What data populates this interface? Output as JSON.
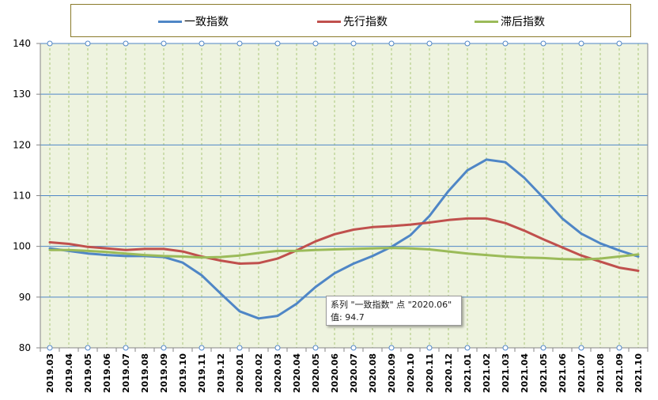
{
  "chart_data": {
    "type": "line",
    "categories": [
      "2019.03",
      "2019.04",
      "2019.05",
      "2019.06",
      "2019.07",
      "2019.08",
      "2019.09",
      "2019.10",
      "2019.11",
      "2019.12",
      "2020.01",
      "2020.02",
      "2020.03",
      "2020.04",
      "2020.05",
      "2020.06",
      "2020.07",
      "2020.08",
      "2020.09",
      "2020.10",
      "2020.11",
      "2020.12",
      "2021.01",
      "2021.02",
      "2021.03",
      "2021.04",
      "2021.05",
      "2021.06",
      "2021.07",
      "2021.08",
      "2021.09",
      "2021.10"
    ],
    "series": [
      {
        "name": "一致指数",
        "color": "#4f86c6",
        "values": [
          99.6,
          99.1,
          98.6,
          98.3,
          98.1,
          98.1,
          97.9,
          96.8,
          94.3,
          90.7,
          87.2,
          85.8,
          86.3,
          88.7,
          92.0,
          94.7,
          96.6,
          98.1,
          99.9,
          102.2,
          106.0,
          110.9,
          115.0,
          117.1,
          116.6,
          113.5,
          109.6,
          105.5,
          102.5,
          100.6,
          99.2,
          98.0
        ]
      },
      {
        "name": "先行指数",
        "color": "#c0504d",
        "values": [
          100.8,
          100.5,
          99.9,
          99.6,
          99.3,
          99.5,
          99.5,
          99.0,
          98.0,
          97.2,
          96.6,
          96.7,
          97.6,
          99.2,
          101.0,
          102.4,
          103.3,
          103.8,
          104.0,
          104.3,
          104.7,
          105.2,
          105.5,
          105.5,
          104.6,
          103.1,
          101.4,
          99.8,
          98.2,
          97.0,
          95.8,
          95.2
        ]
      },
      {
        "name": "滞后指数",
        "color": "#9bbb59",
        "values": [
          99.3,
          99.3,
          99.1,
          98.9,
          98.6,
          98.3,
          98.1,
          98.0,
          97.8,
          97.9,
          98.2,
          98.7,
          99.1,
          99.1,
          99.3,
          99.4,
          99.5,
          99.6,
          99.7,
          99.6,
          99.4,
          99.0,
          98.6,
          98.3,
          98.0,
          97.8,
          97.7,
          97.5,
          97.4,
          97.6,
          98.0,
          98.4
        ]
      }
    ],
    "ylim": [
      80,
      140
    ],
    "yticks": [
      80,
      90,
      100,
      110,
      120,
      130,
      140
    ],
    "grid": true,
    "legend_position": "top",
    "colors": {
      "plot_background": "#eef3df",
      "major_grid": "#4f86c6",
      "minor_grid": "#a9c77a",
      "axis": "#868686"
    }
  },
  "legend": {
    "items": [
      {
        "label": "一致指数",
        "color": "#4f86c6"
      },
      {
        "label": "先行指数",
        "color": "#c0504d"
      },
      {
        "label": "滞后指数",
        "color": "#9bbb59"
      }
    ]
  },
  "tooltip": {
    "line1": "系列 \"一致指数\" 点 \"2020.06\"",
    "line2": "值: 94.7"
  }
}
